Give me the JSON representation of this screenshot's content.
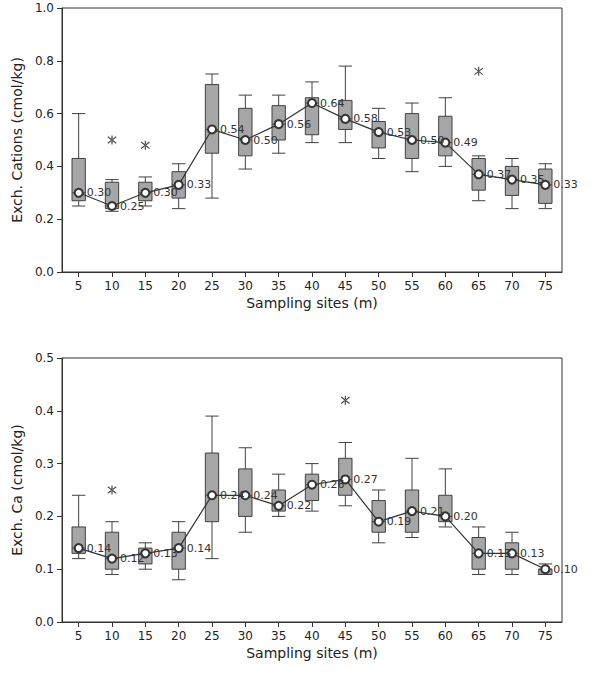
{
  "chart_data": [
    {
      "type": "boxplot",
      "x_label": "Sampling sites (m)",
      "y_label": "Exch. Cations (cmol/kg)",
      "categories": [
        "5",
        "10",
        "15",
        "20",
        "25",
        "30",
        "35",
        "40",
        "45",
        "50",
        "55",
        "60",
        "65",
        "70",
        "75"
      ],
      "boxes": [
        [
          0.25,
          0.27,
          0.3,
          0.43,
          0.6
        ],
        [
          0.23,
          0.24,
          0.25,
          0.34,
          0.35
        ],
        [
          0.25,
          0.27,
          0.3,
          0.34,
          0.36
        ],
        [
          0.24,
          0.28,
          0.33,
          0.38,
          0.41
        ],
        [
          0.28,
          0.45,
          0.54,
          0.71,
          0.75
        ],
        [
          0.39,
          0.44,
          0.5,
          0.62,
          0.67
        ],
        [
          0.45,
          0.5,
          0.56,
          0.63,
          0.67
        ],
        [
          0.49,
          0.52,
          0.64,
          0.66,
          0.72
        ],
        [
          0.49,
          0.54,
          0.58,
          0.65,
          0.78
        ],
        [
          0.43,
          0.47,
          0.53,
          0.57,
          0.62
        ],
        [
          0.38,
          0.43,
          0.5,
          0.6,
          0.64
        ],
        [
          0.4,
          0.44,
          0.49,
          0.59,
          0.66
        ],
        [
          0.27,
          0.31,
          0.37,
          0.43,
          0.44
        ],
        [
          0.24,
          0.29,
          0.35,
          0.4,
          0.43
        ],
        [
          0.24,
          0.26,
          0.33,
          0.39,
          0.41
        ]
      ],
      "values": [
        0.3,
        0.25,
        0.3,
        0.33,
        0.54,
        0.5,
        0.56,
        0.64,
        0.58,
        0.53,
        0.5,
        0.49,
        0.37,
        0.35,
        0.33
      ],
      "value_labels": [
        "0.30",
        "0.25",
        "0.30",
        "0.33",
        "0.54",
        "0.50",
        "0.56",
        "0.64",
        "0.58",
        "0.53",
        "0.50",
        "0.49",
        "0.37",
        "0.35",
        "0.33"
      ],
      "outliers": [
        {
          "category": "10",
          "value": 0.5
        },
        {
          "category": "15",
          "value": 0.48
        },
        {
          "category": "65",
          "value": 0.76
        }
      ],
      "ylim": [
        0,
        1.0
      ],
      "yticks": [
        {
          "value": 0,
          "label": "0.0"
        },
        {
          "value": 0.2,
          "label": "0.2"
        },
        {
          "value": 0.4,
          "label": "0.4"
        },
        {
          "value": 0.6,
          "label": "0.6"
        },
        {
          "value": 0.8,
          "label": "0.8"
        },
        {
          "value": 1.0,
          "label": "1.0"
        }
      ],
      "color": "#a6a6a6",
      "marker": "circle",
      "data_labels": true,
      "grid": false
    },
    {
      "type": "boxplot",
      "x_label": "Sampling sites (m)",
      "y_label": "Exch. Ca (cmol/kg)",
      "categories": [
        "5",
        "10",
        "15",
        "20",
        "25",
        "30",
        "35",
        "40",
        "45",
        "50",
        "55",
        "60",
        "65",
        "70",
        "75"
      ],
      "boxes": [
        [
          0.12,
          0.13,
          0.14,
          0.18,
          0.24
        ],
        [
          0.09,
          0.1,
          0.12,
          0.17,
          0.19
        ],
        [
          0.1,
          0.11,
          0.13,
          0.14,
          0.15
        ],
        [
          0.08,
          0.1,
          0.14,
          0.17,
          0.19
        ],
        [
          0.12,
          0.19,
          0.24,
          0.32,
          0.39
        ],
        [
          0.17,
          0.2,
          0.24,
          0.29,
          0.33
        ],
        [
          0.2,
          0.21,
          0.22,
          0.25,
          0.28
        ],
        [
          0.21,
          0.23,
          0.26,
          0.28,
          0.3
        ],
        [
          0.22,
          0.24,
          0.27,
          0.31,
          0.34
        ],
        [
          0.15,
          0.17,
          0.19,
          0.23,
          0.25
        ],
        [
          0.16,
          0.17,
          0.21,
          0.25,
          0.31
        ],
        [
          0.18,
          0.19,
          0.2,
          0.24,
          0.29
        ],
        [
          0.09,
          0.1,
          0.13,
          0.16,
          0.18
        ],
        [
          0.09,
          0.1,
          0.13,
          0.15,
          0.17
        ],
        [
          0.09,
          0.09,
          0.1,
          0.1,
          0.11
        ]
      ],
      "values": [
        0.14,
        0.12,
        0.13,
        0.14,
        0.24,
        0.24,
        0.22,
        0.26,
        0.27,
        0.19,
        0.21,
        0.2,
        0.13,
        0.13,
        0.1
      ],
      "value_labels": [
        "0.14",
        "0.12",
        "0.13",
        "0.14",
        "0.24",
        "0.24",
        "0.22",
        "0.26",
        "0.27",
        "0.19",
        "0.21",
        "0.20",
        "0.13",
        "0.13",
        "0.10"
      ],
      "outliers": [
        {
          "category": "10",
          "value": 0.25
        },
        {
          "category": "45",
          "value": 0.42
        }
      ],
      "ylim": [
        0,
        0.5
      ],
      "yticks": [
        {
          "value": 0,
          "label": "0.0"
        },
        {
          "value": 0.1,
          "label": "0.1"
        },
        {
          "value": 0.2,
          "label": "0.2"
        },
        {
          "value": 0.3,
          "label": "0.3"
        },
        {
          "value": 0.4,
          "label": "0.4"
        },
        {
          "value": 0.5,
          "label": "0.5"
        }
      ],
      "color": "#a6a6a6",
      "marker": "circle",
      "data_labels": true,
      "grid": false
    }
  ]
}
